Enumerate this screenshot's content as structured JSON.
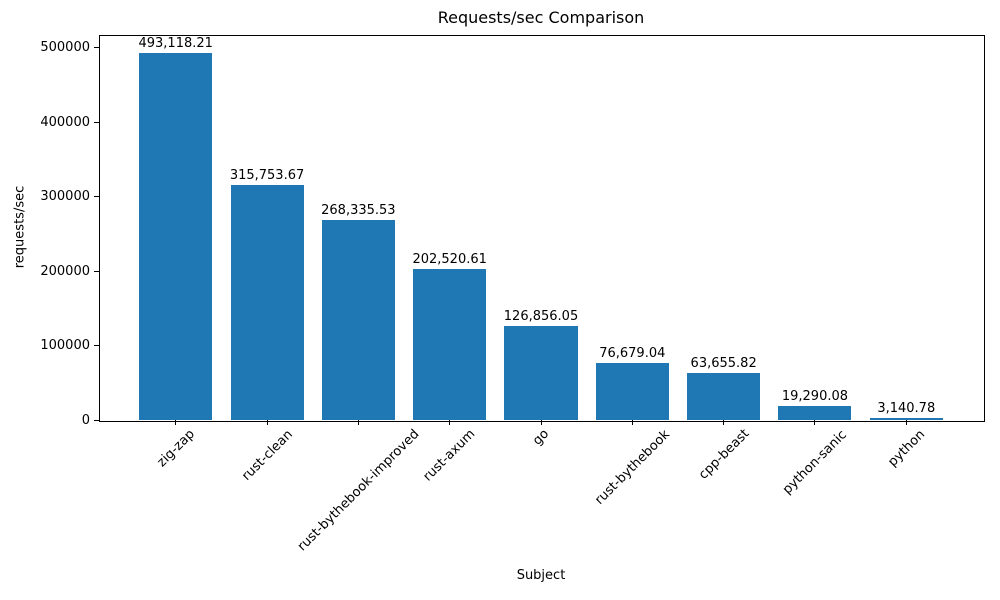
{
  "chart_data": {
    "type": "bar",
    "title": "Requests/sec Comparison",
    "xlabel": "Subject",
    "ylabel": "requests/sec",
    "categories": [
      "zig-zap",
      "rust-clean",
      "rust-bythebook-improved",
      "rust-axum",
      "go",
      "rust-bythebook",
      "cpp-beast",
      "python-sanic",
      "python"
    ],
    "values": [
      493118.21,
      315753.67,
      268335.53,
      202520.61,
      126856.05,
      76679.04,
      63655.82,
      19290.08,
      3140.78
    ],
    "value_labels": [
      "493,118.21",
      "315,753.67",
      "268,335.53",
      "202,520.61",
      "126,856.05",
      "76,679.04",
      "63,655.82",
      "19,290.08",
      "3,140.78"
    ],
    "yticks": [
      0,
      100000,
      200000,
      300000,
      400000,
      500000
    ],
    "ytick_labels": [
      "0",
      "100000",
      "200000",
      "300000",
      "400000",
      "500000"
    ],
    "ylim": [
      0,
      517473
    ],
    "xtick_rotation_deg": 45,
    "bar_color": "#1f77b4",
    "grid": false,
    "legend": "none"
  }
}
